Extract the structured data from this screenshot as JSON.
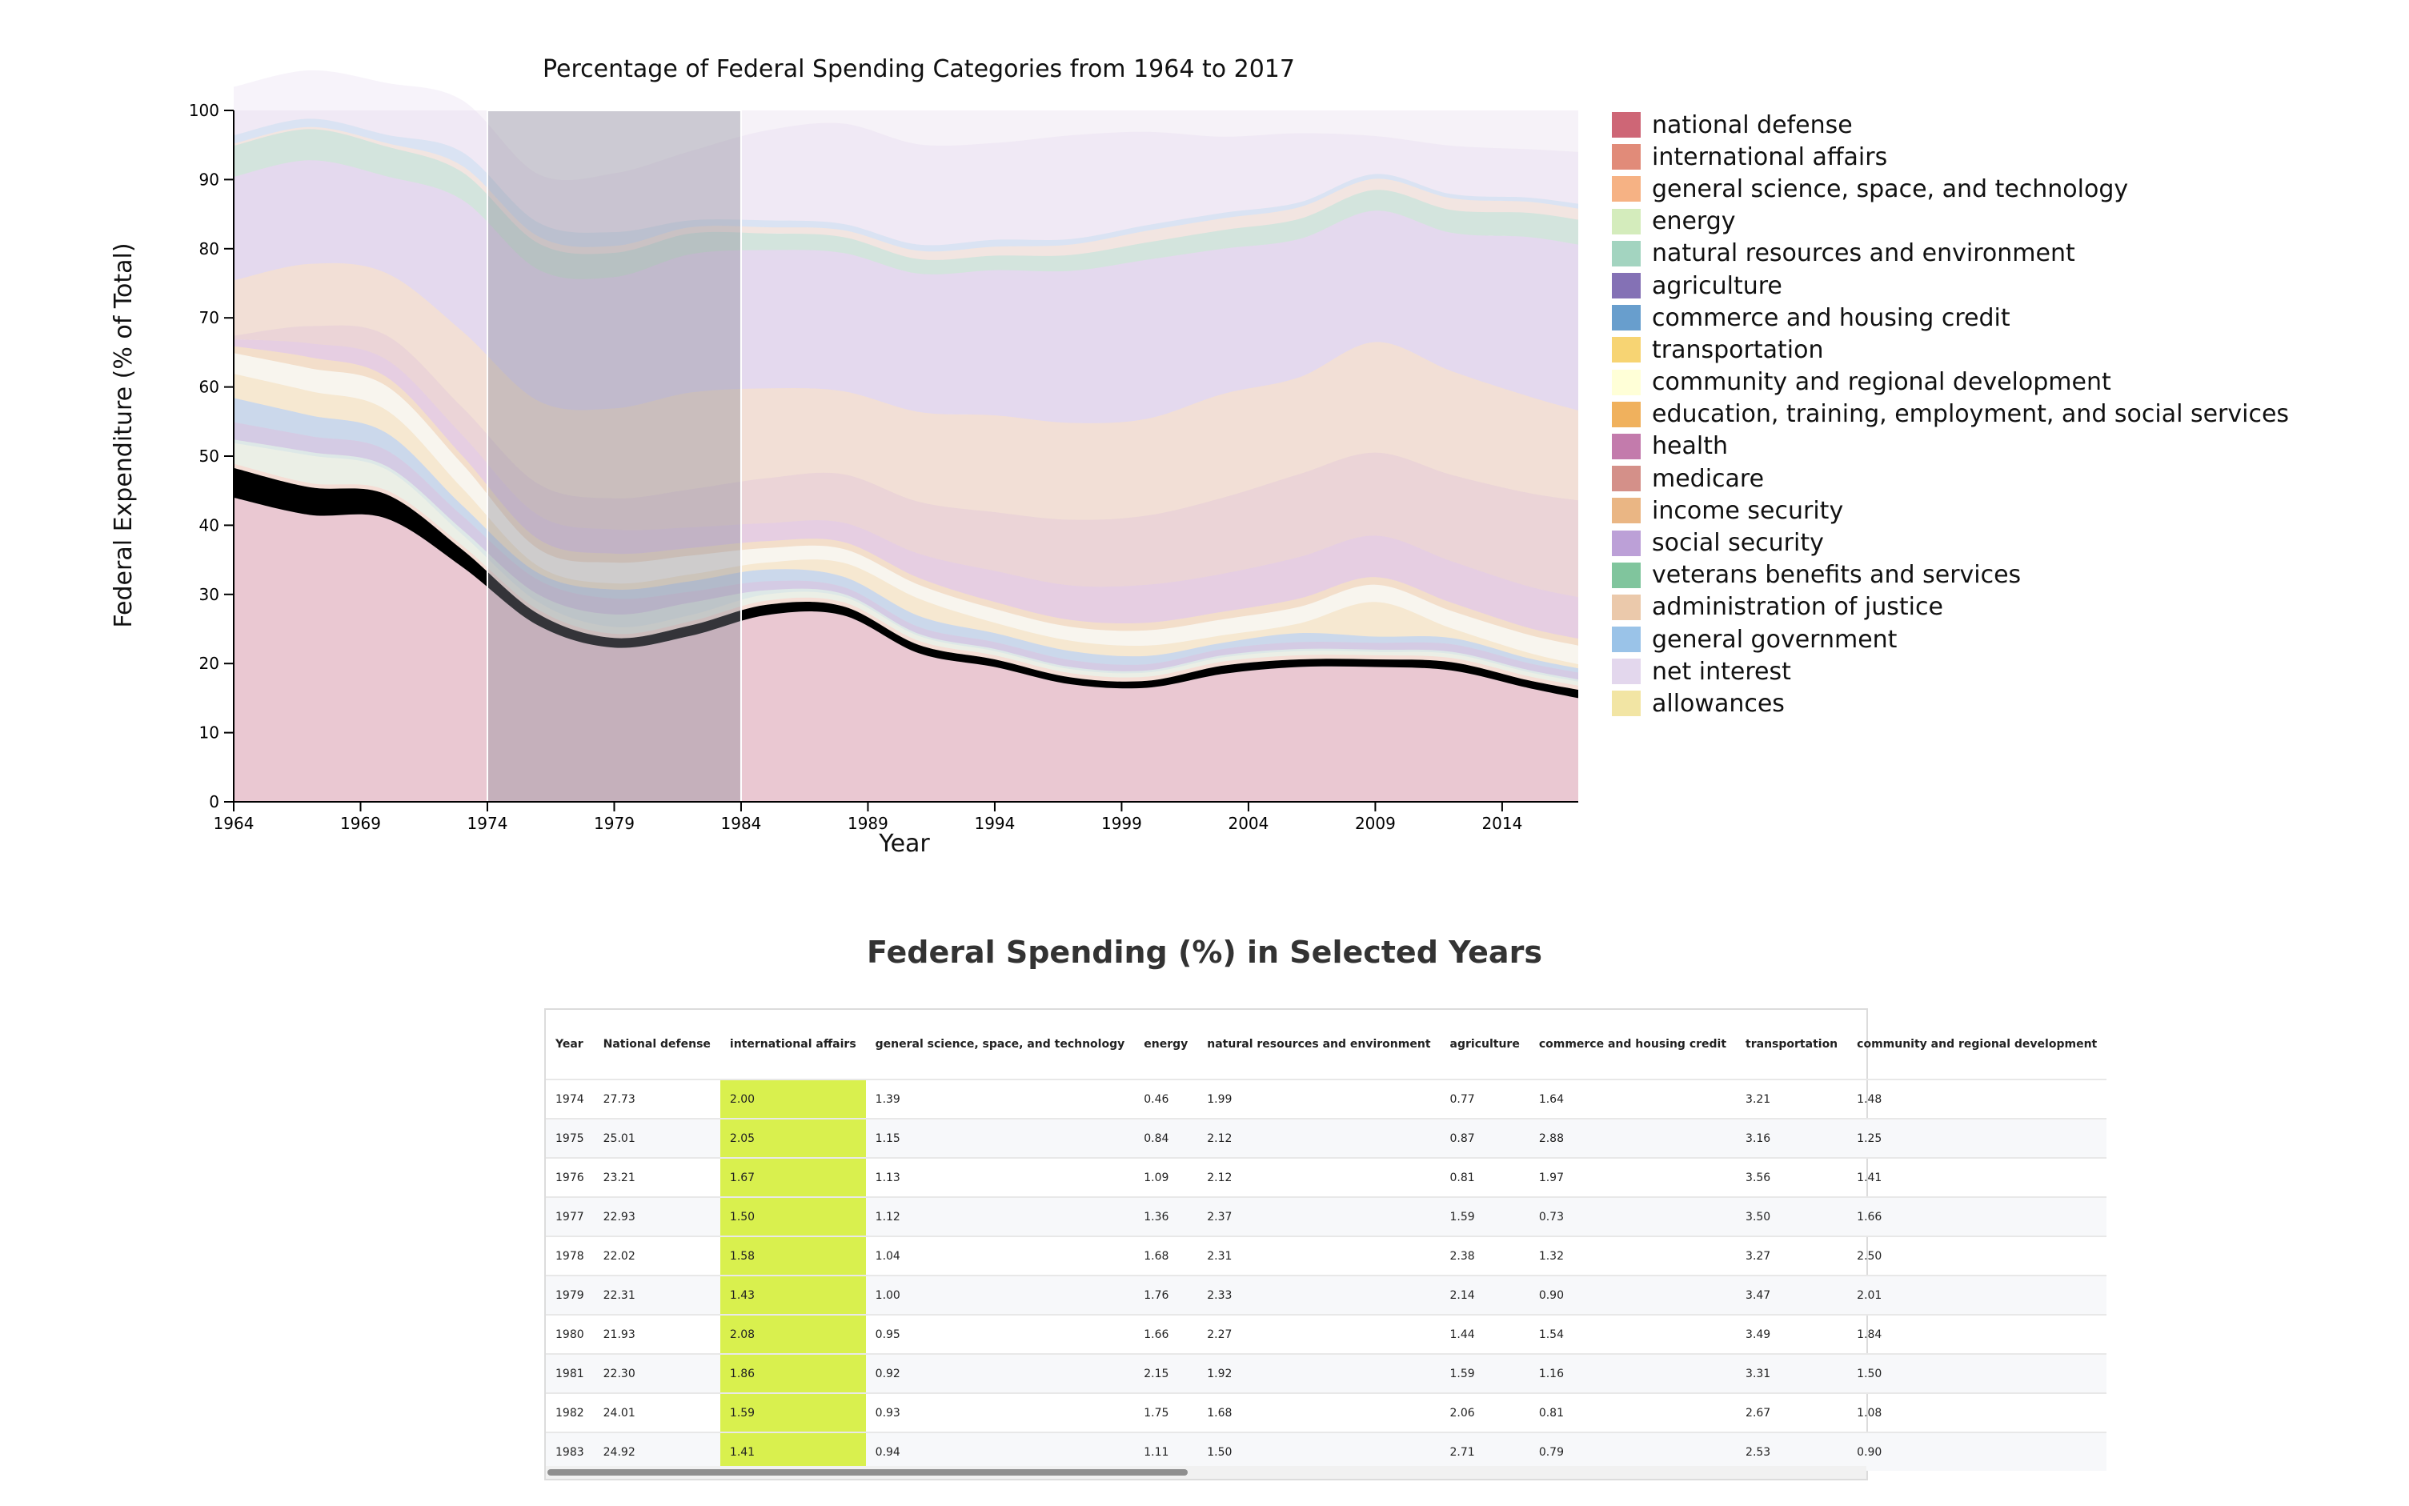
{
  "chart_data": {
    "type": "area",
    "title": "Percentage of Federal Spending Categories from 1964 to 2017",
    "xlabel": "Year",
    "ylabel": "Federal Expenditure (% of Total)",
    "xlim": [
      1964,
      2017
    ],
    "ylim": [
      0,
      100
    ],
    "xticks": [
      "1964",
      "1969",
      "1974",
      "1979",
      "1984",
      "1989",
      "1994",
      "1999",
      "2004",
      "2009",
      "2014"
    ],
    "yticks": [
      "0",
      "10",
      "20",
      "30",
      "40",
      "50",
      "60",
      "70",
      "80",
      "90",
      "100"
    ],
    "brush_range": [
      1974,
      1984
    ],
    "x": [
      1964,
      1967,
      1970,
      1973,
      1976,
      1979,
      1982,
      1985,
      1988,
      1991,
      1994,
      1997,
      2000,
      2003,
      2006,
      2009,
      2012,
      2015,
      2017
    ],
    "series": [
      {
        "name": "national defense",
        "color": "#c64b5e",
        "values": [
          44.0,
          41.5,
          41.0,
          34.0,
          25.5,
          22.3,
          24.0,
          27.0,
          27.0,
          21.5,
          19.5,
          17.0,
          16.5,
          18.5,
          19.5,
          19.5,
          19.0,
          16.5,
          15.0
        ]
      },
      {
        "name": "international affairs",
        "color": "#dc7761",
        "values": [
          4.3,
          4.0,
          3.5,
          2.5,
          1.7,
          1.4,
          1.5,
          1.5,
          1.3,
          1.2,
          1.1,
          1.0,
          1.0,
          1.2,
          1.1,
          1.1,
          1.2,
          1.1,
          1.2
        ]
      },
      {
        "name": "general science, space, and technology",
        "color": "#f4a56f",
        "values": [
          0.6,
          0.6,
          0.6,
          0.6,
          0.6,
          0.6,
          0.6,
          0.6,
          0.6,
          0.6,
          0.6,
          0.6,
          0.6,
          0.6,
          0.6,
          0.6,
          0.6,
          0.6,
          0.6
        ]
      },
      {
        "name": "energy",
        "color": "#cce9b0",
        "values": [
          3.0,
          4.0,
          3.0,
          1.6,
          1.1,
          1.0,
          0.9,
          0.9,
          0.8,
          0.7,
          0.6,
          0.6,
          0.6,
          0.6,
          0.6,
          0.5,
          0.6,
          0.6,
          0.6
        ]
      },
      {
        "name": "natural resources and environment",
        "color": "#93cdb5",
        "values": [
          0.5,
          0.5,
          0.5,
          0.7,
          1.1,
          1.8,
          1.8,
          0.6,
          0.4,
          0.3,
          0.3,
          0.3,
          0.3,
          0.3,
          0.3,
          0.3,
          0.3,
          0.3,
          0.3
        ]
      },
      {
        "name": "agriculture",
        "color": "#6e58a8",
        "values": [
          2.5,
          2.3,
          2.3,
          2.0,
          2.1,
          2.3,
          1.6,
          1.3,
          1.0,
          1.0,
          1.0,
          1.0,
          0.9,
          0.9,
          1.0,
          1.0,
          1.1,
          1.0,
          1.0
        ]
      },
      {
        "name": "commerce and housing credit",
        "color": "#4d8dc4",
        "values": [
          3.5,
          3.0,
          2.5,
          1.5,
          1.0,
          1.3,
          1.5,
          1.7,
          1.5,
          1.6,
          1.3,
          1.3,
          1.2,
          0.9,
          1.3,
          0.9,
          0.9,
          0.7,
          0.6
        ]
      },
      {
        "name": "transportation",
        "color": "#f6cd5a",
        "values": [
          3.5,
          3.5,
          3.3,
          2.5,
          1.0,
          0.9,
          1.0,
          1.0,
          2.0,
          2.5,
          1.5,
          1.5,
          1.5,
          1.1,
          1.4,
          5.0,
          1.4,
          0.8,
          0.6
        ]
      },
      {
        "name": "community and regional development",
        "color": "#ffffd0",
        "values": [
          3.0,
          3.3,
          3.5,
          3.5,
          2.5,
          3.0,
          2.7,
          2.1,
          2.0,
          2.0,
          2.0,
          2.0,
          2.2,
          2.3,
          2.4,
          2.5,
          2.5,
          2.6,
          2.7
        ]
      },
      {
        "name": "education, training, employment, and social services",
        "color": "#eda341",
        "values": [
          1.0,
          1.6,
          1.3,
          1.2,
          1.4,
          1.3,
          1.1,
          1.0,
          1.0,
          1.0,
          1.0,
          1.0,
          1.1,
          1.1,
          1.2,
          1.1,
          1.2,
          1.0,
          1.0
        ]
      },
      {
        "name": "health",
        "color": "#b8649e",
        "values": [
          1.0,
          2.0,
          2.5,
          3.0,
          3.5,
          3.5,
          3.0,
          2.6,
          2.8,
          3.5,
          4.5,
          5.0,
          5.5,
          5.5,
          6.0,
          6.0,
          6.0,
          6.0,
          6.0
        ]
      },
      {
        "name": "medicare",
        "color": "#cd7c74",
        "values": [
          0.5,
          2.5,
          3.5,
          4.0,
          4.5,
          4.5,
          5.5,
          6.5,
          7.0,
          7.5,
          8.5,
          9.5,
          10.0,
          11.0,
          12.0,
          12.0,
          12.5,
          13.5,
          14.0
        ]
      },
      {
        "name": "income security",
        "color": "#e6a96f",
        "values": [
          8.0,
          9.0,
          9.0,
          11.0,
          12.0,
          13.0,
          14.0,
          13.0,
          12.0,
          13.0,
          14.0,
          14.0,
          14.0,
          15.0,
          14.0,
          16.0,
          15.0,
          14.0,
          13.0
        ]
      },
      {
        "name": "social security",
        "color": "#b08fd0",
        "values": [
          15.0,
          15.0,
          14.0,
          19.0,
          19.0,
          19.0,
          20.0,
          20.0,
          20.0,
          20.0,
          21.0,
          22.0,
          23.0,
          21.0,
          20.0,
          19.0,
          20.0,
          23.0,
          24.0
        ]
      },
      {
        "name": "veterans benefits and services",
        "color": "#6abb8c",
        "values": [
          4.5,
          4.5,
          4.3,
          4.0,
          3.8,
          3.5,
          3.0,
          2.4,
          2.3,
          2.1,
          2.1,
          2.3,
          2.5,
          2.7,
          2.9,
          3.0,
          3.3,
          3.5,
          3.6
        ]
      },
      {
        "name": "administration of justice",
        "color": "#e8c09c",
        "values": [
          0.3,
          0.3,
          0.5,
          0.9,
          1.0,
          1.0,
          0.9,
          0.9,
          1.0,
          1.2,
          1.3,
          1.5,
          1.7,
          1.7,
          1.7,
          1.6,
          1.7,
          1.6,
          1.6
        ]
      },
      {
        "name": "general government",
        "color": "#88b9e4",
        "values": [
          1.2,
          1.2,
          1.2,
          2.0,
          2.0,
          2.0,
          1.0,
          1.0,
          0.9,
          0.9,
          1.0,
          0.8,
          0.8,
          0.8,
          0.7,
          0.7,
          0.6,
          0.6,
          0.7
        ]
      },
      {
        "name": "net interest",
        "color": "#ded0ea",
        "values": [
          7.0,
          7.0,
          7.5,
          7.5,
          7.0,
          8.5,
          10.0,
          13.0,
          14.5,
          14.5,
          14.0,
          15.0,
          13.5,
          11.0,
          10.0,
          5.5,
          7.0,
          7.0,
          7.5
        ]
      },
      {
        "name": "allowances",
        "color": "#f0e094",
        "values": [
          0,
          0,
          0,
          0,
          0,
          0,
          0,
          0,
          0,
          0,
          0,
          0,
          0,
          0,
          0,
          0,
          0,
          0,
          0
        ]
      }
    ]
  },
  "table": {
    "title": "Federal Spending (%) in Selected Years",
    "headers": [
      "Year",
      "National defense",
      "international affairs",
      "general science, space, and technology",
      "energy",
      "natural resources and environment",
      "agriculture",
      "commerce and housing credit",
      "transportation",
      "community and regional development"
    ],
    "rows": [
      [
        "1974",
        "27.73",
        "2.00",
        "1.39",
        "0.46",
        "1.99",
        "0.77",
        "1.64",
        "3.21",
        "1.48"
      ],
      [
        "1975",
        "25.01",
        "2.05",
        "1.15",
        "0.84",
        "2.12",
        "0.87",
        "2.88",
        "3.16",
        "1.25"
      ],
      [
        "1976",
        "23.21",
        "1.67",
        "1.13",
        "1.09",
        "2.12",
        "0.81",
        "1.97",
        "3.56",
        "1.41"
      ],
      [
        "1977",
        "22.93",
        "1.50",
        "1.12",
        "1.36",
        "2.37",
        "1.59",
        "0.73",
        "3.50",
        "1.66"
      ],
      [
        "1978",
        "22.02",
        "1.58",
        "1.04",
        "1.68",
        "2.31",
        "2.38",
        "1.32",
        "3.27",
        "2.50"
      ],
      [
        "1979",
        "22.31",
        "1.43",
        "1.00",
        "1.76",
        "2.33",
        "2.14",
        "0.90",
        "3.47",
        "2.01"
      ],
      [
        "1980",
        "21.93",
        "2.08",
        "0.95",
        "1.66",
        "2.27",
        "1.44",
        "1.54",
        "3.49",
        "1.84"
      ],
      [
        "1981",
        "22.30",
        "1.86",
        "0.92",
        "2.15",
        "1.92",
        "1.59",
        "1.16",
        "3.31",
        "1.50"
      ],
      [
        "1982",
        "24.01",
        "1.59",
        "0.93",
        "1.75",
        "1.68",
        "2.06",
        "0.81",
        "2.67",
        "1.08"
      ],
      [
        "1983",
        "24.92",
        "1.41",
        "0.94",
        "1.11",
        "1.50",
        "2.71",
        "0.79",
        "2.53",
        "0.90"
      ]
    ],
    "highlight_column": 2,
    "highlight_color": "#d9f04e"
  }
}
